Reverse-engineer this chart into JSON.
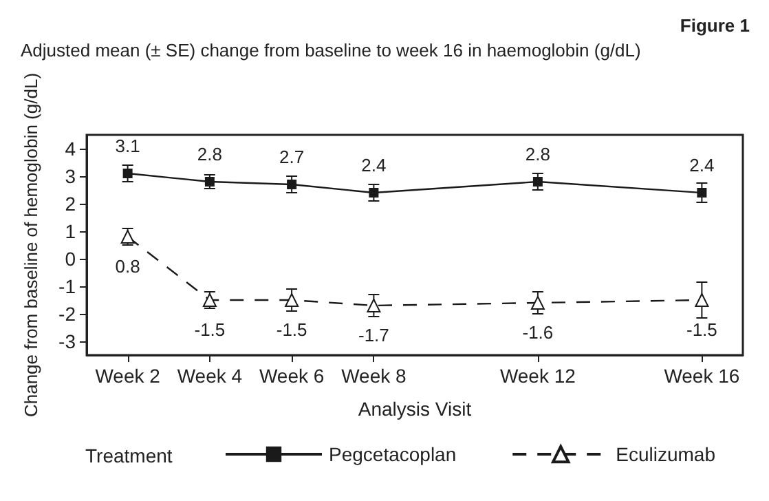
{
  "chart_data": {
    "type": "line",
    "title": "Adjusted mean (± SE) change from baseline to week 16 in haemoglobin (g/dL)",
    "annotations": [
      "Figure 1"
    ],
    "xlabel": "Analysis Visit",
    "ylabel": "Change from baseline of hemoglobin (g/dL)",
    "categories": [
      "Week 2",
      "Week 4",
      "Week 6",
      "Week 8",
      null,
      "Week 12",
      null,
      "Week 16"
    ],
    "ylim": [
      -3.5,
      4.5
    ],
    "yticks": [
      -3,
      -2,
      -1,
      0,
      1,
      2,
      3,
      4
    ],
    "series": [
      {
        "name": "Pegcetacoplan",
        "color": "#1a1a1a",
        "marker": "square",
        "line_style": "solid",
        "values": [
          3.1,
          2.8,
          2.7,
          2.4,
          null,
          2.8,
          null,
          2.4
        ],
        "errors": [
          0.3,
          0.25,
          0.3,
          0.3,
          null,
          0.3,
          null,
          0.35
        ]
      },
      {
        "name": "Eculizumab",
        "color": "#1a1a1a",
        "marker": "triangle",
        "line_style": "dashed",
        "values": [
          0.8,
          -1.5,
          -1.5,
          -1.7,
          null,
          -1.6,
          null,
          -1.5
        ],
        "errors": [
          0.3,
          0.3,
          0.4,
          0.4,
          null,
          0.4,
          null,
          0.65
        ]
      }
    ],
    "data_labels": true,
    "grid": false,
    "legend": "bottom",
    "legend_title": "Treatment"
  }
}
